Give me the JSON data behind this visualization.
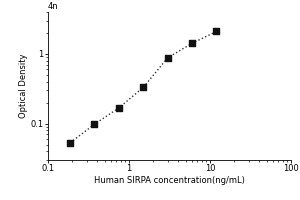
{
  "x_data": [
    0.188,
    0.375,
    0.75,
    1.5,
    3.0,
    6.0,
    12.0
  ],
  "y_data": [
    0.053,
    0.098,
    0.168,
    0.33,
    0.88,
    1.42,
    2.1
  ],
  "xlabel": "Human SIRPA concentration(ng/mL)",
  "ylabel": "Optical Density",
  "xlim": [
    0.1,
    100
  ],
  "ylim": [
    0.03,
    4
  ],
  "xticks": [
    0.1,
    1,
    10,
    100
  ],
  "yticks": [
    0.1,
    1
  ],
  "marker": "s",
  "marker_color": "#111111",
  "marker_size": 4,
  "line_style": ":",
  "line_color": "#333333",
  "line_width": 1.0,
  "background_color": "#ffffff",
  "top_label": "4n",
  "xlabel_fontsize": 6.0,
  "ylabel_fontsize": 6.0,
  "tick_fontsize": 6.0
}
